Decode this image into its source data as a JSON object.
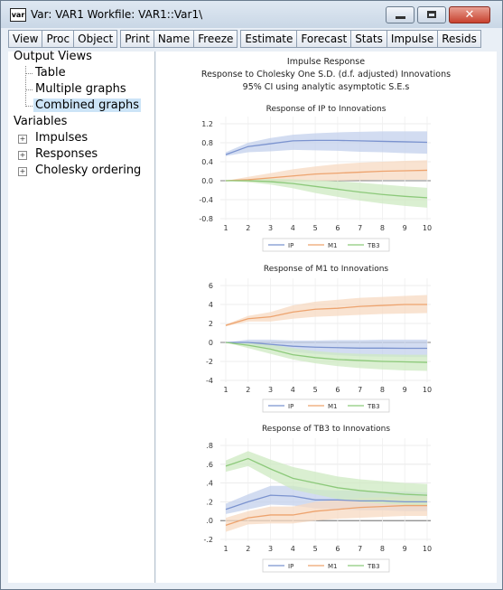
{
  "window": {
    "icon_label": "var",
    "title": "Var: VAR1   Workfile: VAR1::Var1\\",
    "close_glyph": "✕"
  },
  "toolbar": {
    "groups": [
      [
        "View",
        "Proc",
        "Object"
      ],
      [
        "Print",
        "Name",
        "Freeze"
      ],
      [
        "Estimate",
        "Forecast",
        "Stats",
        "Impulse",
        "Resids"
      ]
    ]
  },
  "sidebar": {
    "output_views_label": "Output Views",
    "output_views": [
      "Table",
      "Multiple graphs",
      "Combined graphs"
    ],
    "selected": "Combined graphs",
    "variables_label": "Variables",
    "variables": [
      "Impulses",
      "Responses",
      "Cholesky ordering"
    ]
  },
  "figure": {
    "heading": "Impulse Response",
    "subheading": "Response to Cholesky One S.D. (d.f. adjusted) Innovations",
    "ci_note": "95% CI using analytic asymptotic S.E.s"
  },
  "colors": {
    "IP": "#7b93cf",
    "M1": "#eda36e",
    "TB3": "#8cc97a",
    "IP_band": "#c3d0ec",
    "M1_band": "#f7d9c1",
    "TB3_band": "#cde9c2",
    "window_border": "#6a7b8e",
    "selection": "#cce4f7"
  },
  "chart_data": [
    {
      "type": "line",
      "title": "Response of IP to Innovations",
      "x": [
        1,
        2,
        3,
        4,
        5,
        6,
        7,
        8,
        9,
        10
      ],
      "yticks": [
        "1.2",
        "0.8",
        "0.4",
        "0.0",
        "-0.4",
        "-0.8"
      ],
      "ylim": [
        -0.8,
        1.2
      ],
      "legend_position": "bottom",
      "series": [
        {
          "name": "IP",
          "values": [
            0.55,
            0.72,
            0.78,
            0.84,
            0.85,
            0.85,
            0.84,
            0.83,
            0.82,
            0.81
          ],
          "lower": [
            0.52,
            0.6,
            0.62,
            0.65,
            0.64,
            0.63,
            0.61,
            0.6,
            0.58,
            0.57
          ],
          "upper": [
            0.6,
            0.8,
            0.9,
            0.97,
            1.0,
            1.02,
            1.03,
            1.04,
            1.04,
            1.04
          ]
        },
        {
          "name": "M1",
          "values": [
            0.0,
            0.02,
            0.06,
            0.1,
            0.14,
            0.16,
            0.18,
            0.2,
            0.21,
            0.22
          ],
          "lower": [
            0.0,
            -0.03,
            -0.03,
            -0.02,
            -0.01,
            0.0,
            0.01,
            0.02,
            0.02,
            0.02
          ],
          "upper": [
            0.0,
            0.08,
            0.16,
            0.24,
            0.3,
            0.35,
            0.38,
            0.4,
            0.42,
            0.43
          ]
        },
        {
          "name": "TB3",
          "values": [
            0.0,
            0.0,
            -0.02,
            -0.06,
            -0.12,
            -0.18,
            -0.24,
            -0.29,
            -0.33,
            -0.36
          ],
          "lower": [
            0.0,
            -0.03,
            -0.08,
            -0.16,
            -0.26,
            -0.34,
            -0.42,
            -0.48,
            -0.53,
            -0.57
          ],
          "upper": [
            0.0,
            0.03,
            0.04,
            0.03,
            0.01,
            -0.01,
            -0.04,
            -0.08,
            -0.12,
            -0.15
          ]
        }
      ]
    },
    {
      "type": "line",
      "title": "Response of M1 to Innovations",
      "x": [
        1,
        2,
        3,
        4,
        5,
        6,
        7,
        8,
        9,
        10
      ],
      "yticks": [
        "6",
        "4",
        "2",
        "0",
        "-2",
        "-4"
      ],
      "ylim": [
        -4,
        6
      ],
      "legend_position": "bottom",
      "series": [
        {
          "name": "IP",
          "values": [
            0.0,
            0.0,
            -0.2,
            -0.4,
            -0.5,
            -0.55,
            -0.6,
            -0.6,
            -0.62,
            -0.62
          ],
          "lower": [
            0.0,
            -0.3,
            -0.6,
            -1.0,
            -1.2,
            -1.35,
            -1.45,
            -1.5,
            -1.52,
            -1.55
          ],
          "upper": [
            0.0,
            0.3,
            0.3,
            0.2,
            0.2,
            0.25,
            0.25,
            0.3,
            0.3,
            0.3
          ]
        },
        {
          "name": "M1",
          "values": [
            1.8,
            2.5,
            2.7,
            3.2,
            3.5,
            3.6,
            3.8,
            3.9,
            4.0,
            4.0
          ],
          "lower": [
            1.7,
            2.2,
            2.2,
            2.5,
            2.7,
            2.8,
            2.9,
            3.0,
            3.05,
            3.1
          ],
          "upper": [
            1.9,
            2.8,
            3.2,
            3.9,
            4.3,
            4.5,
            4.7,
            4.8,
            4.9,
            5.0
          ]
        },
        {
          "name": "TB3",
          "values": [
            0.0,
            -0.3,
            -0.7,
            -1.3,
            -1.6,
            -1.8,
            -1.9,
            -2.0,
            -2.05,
            -2.1
          ],
          "lower": [
            0.0,
            -0.6,
            -1.2,
            -1.8,
            -2.2,
            -2.5,
            -2.7,
            -2.85,
            -2.95,
            -3.0
          ],
          "upper": [
            0.0,
            0.0,
            -0.2,
            -0.6,
            -0.9,
            -1.1,
            -1.2,
            -1.25,
            -1.3,
            -1.3
          ]
        }
      ]
    },
    {
      "type": "line",
      "title": "Response of TB3 to Innovations",
      "x": [
        1,
        2,
        3,
        4,
        5,
        6,
        7,
        8,
        9,
        10
      ],
      "yticks": [
        ".8",
        ".6",
        ".4",
        ".2",
        ".0",
        "-.2"
      ],
      "ylim": [
        -0.2,
        0.8
      ],
      "legend_position": "bottom",
      "series": [
        {
          "name": "IP",
          "values": [
            0.12,
            0.2,
            0.27,
            0.26,
            0.22,
            0.22,
            0.21,
            0.21,
            0.2,
            0.2
          ],
          "lower": [
            0.07,
            0.12,
            0.17,
            0.16,
            0.13,
            0.12,
            0.11,
            0.11,
            0.1,
            0.1
          ],
          "upper": [
            0.18,
            0.28,
            0.37,
            0.37,
            0.33,
            0.32,
            0.32,
            0.31,
            0.31,
            0.3
          ]
        },
        {
          "name": "M1",
          "values": [
            -0.05,
            0.03,
            0.06,
            0.06,
            0.1,
            0.12,
            0.14,
            0.15,
            0.16,
            0.16
          ],
          "lower": [
            -0.12,
            -0.04,
            -0.03,
            -0.03,
            0.0,
            0.02,
            0.03,
            0.04,
            0.05,
            0.05
          ],
          "upper": [
            0.03,
            0.1,
            0.15,
            0.15,
            0.2,
            0.22,
            0.24,
            0.25,
            0.26,
            0.26
          ]
        },
        {
          "name": "TB3",
          "values": [
            0.58,
            0.66,
            0.55,
            0.45,
            0.4,
            0.35,
            0.32,
            0.3,
            0.28,
            0.27
          ],
          "lower": [
            0.52,
            0.58,
            0.45,
            0.33,
            0.28,
            0.23,
            0.2,
            0.18,
            0.17,
            0.16
          ],
          "upper": [
            0.64,
            0.74,
            0.65,
            0.57,
            0.52,
            0.47,
            0.44,
            0.42,
            0.4,
            0.39
          ]
        }
      ]
    }
  ]
}
